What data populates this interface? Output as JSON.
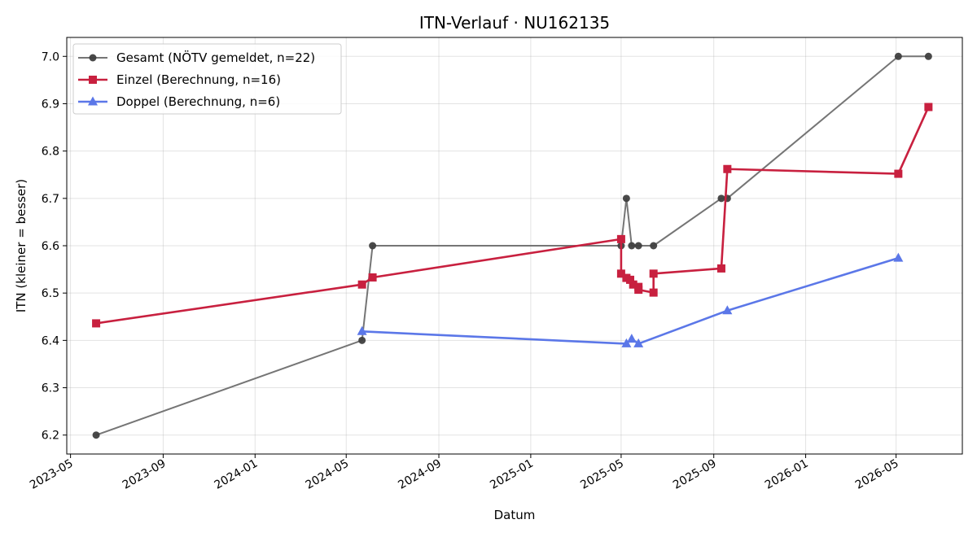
{
  "chart_data": {
    "type": "line",
    "title": "ITN-Verlauf · NU162135",
    "xlabel": "Datum",
    "ylabel": "ITN  (kleiner = besser)",
    "xlim": [
      "2023-04-26",
      "2026-07-28"
    ],
    "ylim": [
      6.16,
      7.04
    ],
    "x_ticks": [
      "2023-05",
      "2023-09",
      "2024-01",
      "2024-05",
      "2024-09",
      "2025-01",
      "2025-05",
      "2025-09",
      "2026-01",
      "2026-05"
    ],
    "y_ticks": [
      6.2,
      6.3,
      6.4,
      6.5,
      6.6,
      6.7,
      6.8,
      6.9,
      7.0
    ],
    "grid": true,
    "legend_position": "top-left",
    "series": [
      {
        "name": "Gesamt (NÖTV gemeldet, n=22)",
        "color": "#757575",
        "marker": "circle",
        "points": [
          {
            "x": "2023-06-04",
            "y": 6.2
          },
          {
            "x": "2024-05-22",
            "y": 6.4
          },
          {
            "x": "2024-06-05",
            "y": 6.6
          },
          {
            "x": "2025-05-01",
            "y": 6.6
          },
          {
            "x": "2025-05-08",
            "y": 6.7
          },
          {
            "x": "2025-05-15",
            "y": 6.6
          },
          {
            "x": "2025-05-24",
            "y": 6.6
          },
          {
            "x": "2025-06-13",
            "y": 6.6
          },
          {
            "x": "2025-09-11",
            "y": 6.7
          },
          {
            "x": "2025-09-19",
            "y": 6.7
          },
          {
            "x": "2026-05-04",
            "y": 7.0
          },
          {
            "x": "2026-06-13",
            "y": 7.0
          }
        ]
      },
      {
        "name": "Einzel (Berechnung, n=16)",
        "color": "#c8203f",
        "marker": "square",
        "points": [
          {
            "x": "2023-06-04",
            "y": 6.436
          },
          {
            "x": "2024-05-22",
            "y": 6.518
          },
          {
            "x": "2024-06-05",
            "y": 6.533
          },
          {
            "x": "2025-05-01",
            "y": 6.614
          },
          {
            "x": "2025-05-01",
            "y": 6.541
          },
          {
            "x": "2025-05-08",
            "y": 6.532
          },
          {
            "x": "2025-05-13",
            "y": 6.528
          },
          {
            "x": "2025-05-17",
            "y": 6.518
          },
          {
            "x": "2025-05-24",
            "y": 6.513
          },
          {
            "x": "2025-05-24",
            "y": 6.507
          },
          {
            "x": "2025-06-13",
            "y": 6.501
          },
          {
            "x": "2025-06-13",
            "y": 6.541
          },
          {
            "x": "2025-09-11",
            "y": 6.552
          },
          {
            "x": "2025-09-19",
            "y": 6.762
          },
          {
            "x": "2026-05-04",
            "y": 6.752
          },
          {
            "x": "2026-06-13",
            "y": 6.893
          }
        ]
      },
      {
        "name": "Doppel (Berechnung, n=6)",
        "color": "#5b77e8",
        "marker": "triangle",
        "points": [
          {
            "x": "2024-05-22",
            "y": 6.419
          },
          {
            "x": "2025-05-08",
            "y": 6.393
          },
          {
            "x": "2025-05-15",
            "y": 6.403
          },
          {
            "x": "2025-05-24",
            "y": 6.393
          },
          {
            "x": "2025-09-19",
            "y": 6.463
          },
          {
            "x": "2026-05-04",
            "y": 6.574
          }
        ]
      }
    ]
  }
}
